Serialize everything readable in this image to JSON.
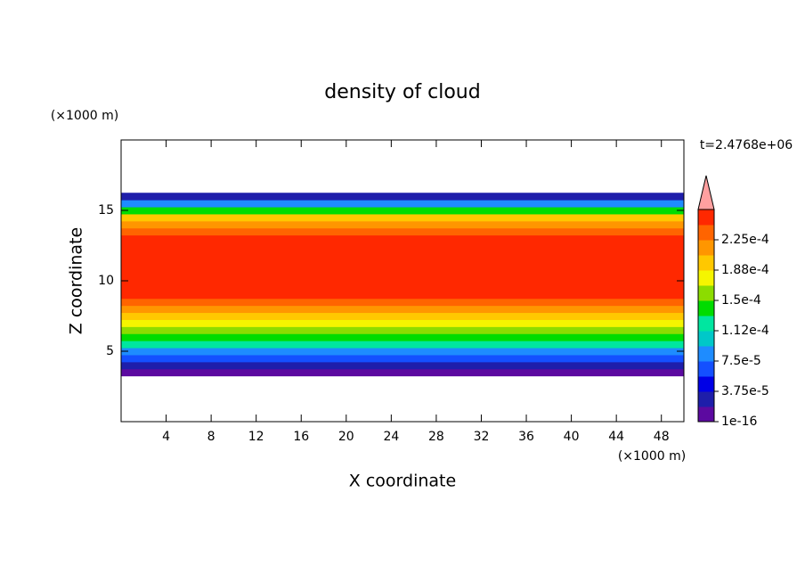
{
  "chart_data": {
    "type": "contour",
    "title": "density of cloud",
    "time_label": "t=2.4768e+06",
    "x_label": "X coordinate",
    "y_label": "Z coordinate",
    "x_unit": "(×1000 m)",
    "y_unit": "(×1000 m)",
    "xlim": [
      0,
      50
    ],
    "ylim": [
      0,
      20
    ],
    "xticks": [
      4,
      8,
      12,
      16,
      20,
      24,
      28,
      32,
      36,
      40,
      44,
      48
    ],
    "yticks": [
      5,
      10,
      15
    ],
    "profile": {
      "z": [
        3.5,
        4,
        4.5,
        5,
        5.5,
        6,
        6.5,
        7,
        7.5,
        8,
        8.5,
        9,
        9.5,
        10,
        10.5,
        11,
        11.5,
        12,
        12.5,
        13,
        13.5,
        14,
        14.5,
        15,
        15.5,
        16
      ],
      "values": [
        1e-16,
        3e-05,
        6e-05,
        9e-05,
        0.00012,
        0.000145,
        0.000165,
        0.00018,
        0.000195,
        0.00021,
        0.00023,
        0.000245,
        0.000245,
        0.000245,
        0.000245,
        0.000245,
        0.000245,
        0.000245,
        0.000245,
        0.000245,
        0.00023,
        0.00022,
        0.00019,
        0.00014,
        9e-05,
        2e-05
      ]
    },
    "levels": [
      1e-16,
      1.875e-05,
      3.75e-05,
      5.625e-05,
      7.5e-05,
      9.375e-05,
      0.0001125,
      0.00013125,
      0.00015,
      0.00016875,
      0.0001875,
      0.00020625,
      0.000225,
      0.00024375,
      0.0002625
    ],
    "colors": [
      "#5c0aa0",
      "#1e1eaa",
      "#0000e6",
      "#1450ff",
      "#1e8cff",
      "#00c8c8",
      "#00e6a0",
      "#00dc00",
      "#8cdc00",
      "#f5f500",
      "#ffc800",
      "#ff9600",
      "#ff6400",
      "#ff2800"
    ],
    "extend_color": "#ffa0a0",
    "colorbar_ticks": [
      1e-16,
      {
        "value": 3.75e-05,
        "label": "3.75e-5"
      },
      {
        "value": 7.5e-05,
        "label": "7.5e-5"
      },
      {
        "value": 0.0001125,
        "label": "1.12e-4"
      },
      {
        "value": 0.00015,
        "label": "1.5e-4"
      },
      {
        "value": 0.0001875,
        "label": "1.88e-4"
      },
      {
        "value": 0.000225,
        "label": "2.25e-4"
      }
    ]
  }
}
